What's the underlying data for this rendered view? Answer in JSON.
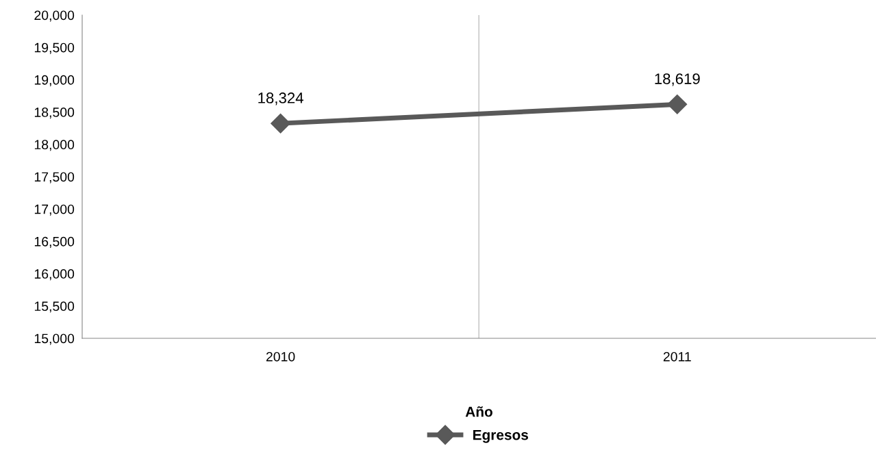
{
  "chart_data": {
    "type": "line",
    "xlabel": "Año",
    "categories": [
      "2010",
      "2011"
    ],
    "series": [
      {
        "name": "Egresos",
        "color": "#595959",
        "values": [
          18324,
          18619
        ],
        "value_labels": [
          "18,324",
          "18,619"
        ]
      }
    ],
    "ylim": [
      15000,
      20000
    ],
    "yticks": [
      {
        "value": 15000,
        "label": "15,000"
      },
      {
        "value": 15500,
        "label": "15,500"
      },
      {
        "value": 16000,
        "label": "16,000"
      },
      {
        "value": 16500,
        "label": "16,500"
      },
      {
        "value": 17000,
        "label": "17,000"
      },
      {
        "value": 17500,
        "label": "17,500"
      },
      {
        "value": 18000,
        "label": "18,000"
      },
      {
        "value": 18500,
        "label": "18,500"
      },
      {
        "value": 19000,
        "label": "19,000"
      },
      {
        "value": 19500,
        "label": "19,500"
      },
      {
        "value": 20000,
        "label": "20,000"
      }
    ],
    "grid": "x",
    "legend": "bottom",
    "marker": "diamond",
    "line_style": "solid"
  }
}
